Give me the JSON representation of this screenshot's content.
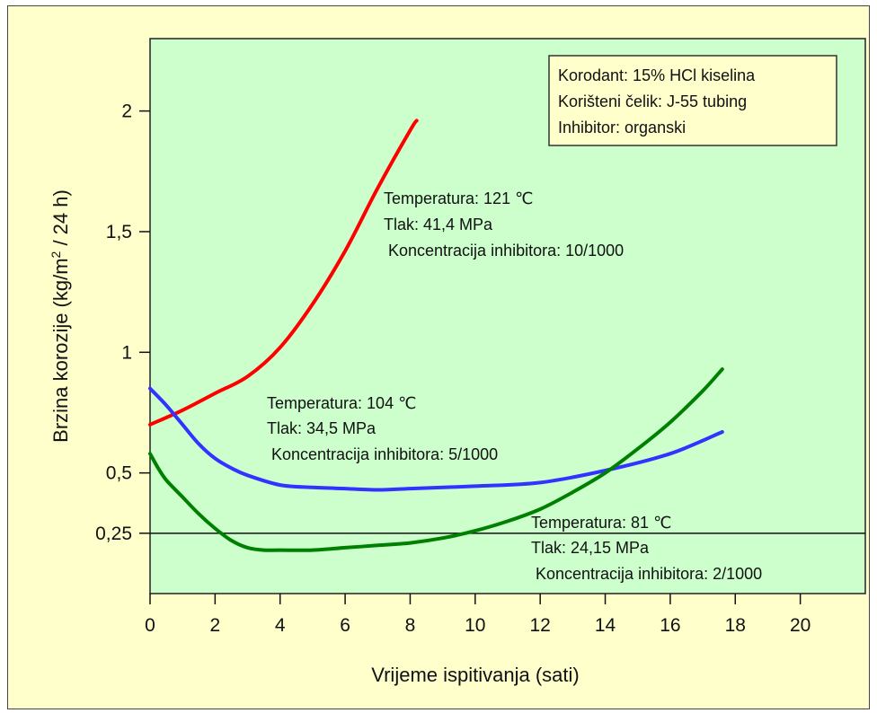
{
  "chart_data": {
    "type": "line",
    "title": "",
    "xlabel": "Vrijeme ispitivanja  (sati)",
    "ylabel_prefix": "Brzina korozije  (kg/m",
    "ylabel_sup": "2",
    "ylabel_suffix": " / 24 h)",
    "xlim": [
      0,
      22
    ],
    "ylim": [
      0,
      2.3
    ],
    "x_ticks": [
      {
        "value": 0,
        "label": "0"
      },
      {
        "value": 2,
        "label": "2"
      },
      {
        "value": 4,
        "label": "4"
      },
      {
        "value": 6,
        "label": "6"
      },
      {
        "value": 8,
        "label": "8"
      },
      {
        "value": 10,
        "label": "10"
      },
      {
        "value": 12,
        "label": "12"
      },
      {
        "value": 14,
        "label": "14"
      },
      {
        "value": 16,
        "label": "16"
      },
      {
        "value": 18,
        "label": "18"
      },
      {
        "value": 20,
        "label": "20"
      }
    ],
    "y_ticks": [
      {
        "value": 0.25,
        "label": "0,25"
      },
      {
        "value": 0.5,
        "label": "0,5"
      },
      {
        "value": 1,
        "label": "1"
      },
      {
        "value": 1.5,
        "label": "1,5"
      },
      {
        "value": 2,
        "label": "2"
      }
    ],
    "reference_line": {
      "y": 0.25
    },
    "grid": false,
    "colors": {
      "plot_bg": "#ccffcc",
      "outer_bg": "#ffffcc",
      "info_bg": "#ffffcc"
    },
    "info_box": {
      "lines": [
        "Korodant: 15% HCl kiselina",
        "Korišteni čelik: J-55 tubing",
        "Inhibitor: organski"
      ]
    },
    "series": [
      {
        "color": "#ff0000",
        "x": [
          0,
          1,
          2,
          3,
          4,
          5,
          6,
          7,
          8,
          8.2
        ],
        "y": [
          0.7,
          0.76,
          0.83,
          0.9,
          1.02,
          1.2,
          1.42,
          1.68,
          1.92,
          1.96
        ],
        "annotation": [
          "Temperatura: 121 ℃",
          "Tlak: 41,4 MPa",
          " Koncentracija inhibitora: 10/1000"
        ]
      },
      {
        "color": "#3333ff",
        "x": [
          0,
          0.5,
          1,
          1.5,
          2,
          2.5,
          3,
          4,
          5,
          6,
          7,
          8,
          10,
          12,
          14,
          16,
          17.6
        ],
        "y": [
          0.85,
          0.78,
          0.7,
          0.62,
          0.56,
          0.52,
          0.49,
          0.45,
          0.44,
          0.435,
          0.43,
          0.435,
          0.445,
          0.46,
          0.51,
          0.58,
          0.67
        ],
        "annotation": [
          "Temperatura: 104 ℃",
          "Tlak: 34,5 MPa",
          " Koncentracija inhibitora: 5/1000"
        ]
      },
      {
        "color": "#008000",
        "x": [
          0,
          0.25,
          0.5,
          1,
          1.5,
          2,
          2.5,
          3,
          3.5,
          4,
          5,
          6,
          7,
          8,
          9,
          10,
          11,
          12,
          13,
          14,
          15,
          16,
          17,
          17.6
        ],
        "y": [
          0.58,
          0.52,
          0.47,
          0.4,
          0.33,
          0.27,
          0.22,
          0.19,
          0.18,
          0.18,
          0.18,
          0.19,
          0.2,
          0.21,
          0.23,
          0.26,
          0.3,
          0.35,
          0.42,
          0.5,
          0.6,
          0.71,
          0.84,
          0.93
        ],
        "annotation": [
          "Temperatura: 81 ℃",
          "Tlak: 24,15 MPa",
          " Koncentracija inhibitora: 2/1000"
        ]
      }
    ]
  }
}
